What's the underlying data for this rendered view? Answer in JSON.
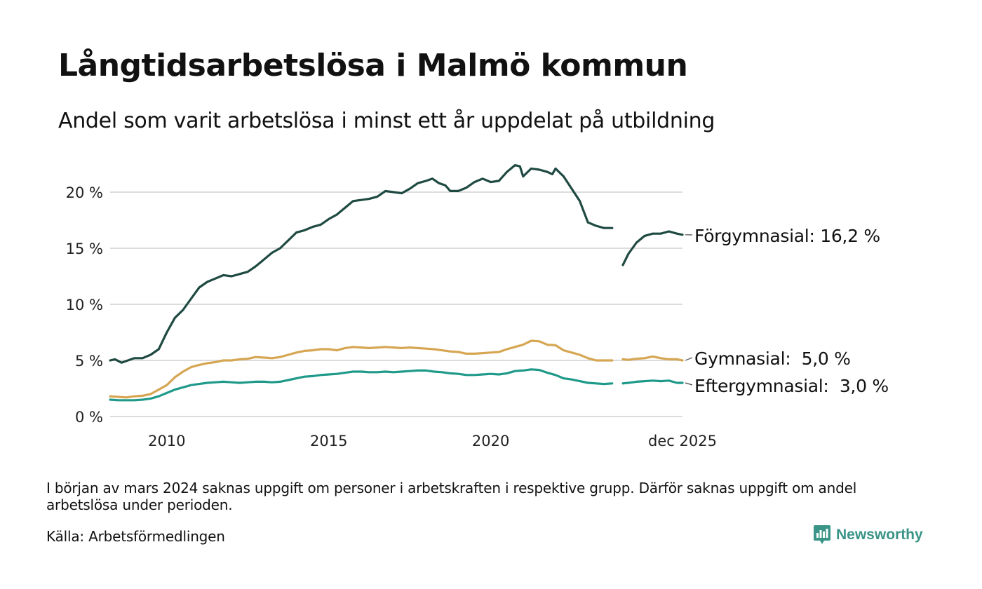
{
  "header": {
    "title": "Långtidsarbetslösa i Malmö kommun",
    "subtitle": "Andel som varit arbetslösa i minst ett år uppdelat på utbildning"
  },
  "footer": {
    "note": "I början av mars 2024 saknas uppgift om personer i arbetskraften i respektive grupp. Därför saknas uppgift om andel arbetslösa under perioden.",
    "source": "Källa: Arbetsförmedlingen",
    "brand": "Newsworthy",
    "brand_icon": "newsworthy-logo-icon",
    "brand_color": "#3a9487"
  },
  "chart_data": {
    "type": "line",
    "title": "Långtidsarbetslösa i Malmö kommun",
    "xlabel": "",
    "ylabel": "",
    "x_range": [
      2008.25,
      2025.92
    ],
    "ylim": [
      0,
      22.5
    ],
    "yticks": [
      0,
      5,
      10,
      15,
      20
    ],
    "ytick_labels": [
      "0 %",
      "5 %",
      "10 %",
      "15 %",
      "20 %"
    ],
    "xticks": [
      2010,
      2015,
      2020,
      2025.92
    ],
    "xtick_labels": [
      "2010",
      "2015",
      "2020",
      "dec 2025"
    ],
    "grid": true,
    "gap": [
      2023.75,
      2024.08
    ],
    "series": [
      {
        "name": "Förgymnasial",
        "label": "Förgymnasial: 16,2 %",
        "color": "#1f4a42",
        "points": [
          [
            2008.25,
            5.0
          ],
          [
            2008.4,
            5.1
          ],
          [
            2008.6,
            4.8
          ],
          [
            2008.8,
            5.0
          ],
          [
            2009.0,
            5.2
          ],
          [
            2009.25,
            5.2
          ],
          [
            2009.5,
            5.5
          ],
          [
            2009.75,
            6.0
          ],
          [
            2010.0,
            7.5
          ],
          [
            2010.25,
            8.8
          ],
          [
            2010.5,
            9.5
          ],
          [
            2010.75,
            10.5
          ],
          [
            2011.0,
            11.5
          ],
          [
            2011.25,
            12.0
          ],
          [
            2011.5,
            12.3
          ],
          [
            2011.75,
            12.6
          ],
          [
            2012.0,
            12.5
          ],
          [
            2012.25,
            12.7
          ],
          [
            2012.5,
            12.9
          ],
          [
            2012.75,
            13.4
          ],
          [
            2013.0,
            14.0
          ],
          [
            2013.25,
            14.6
          ],
          [
            2013.5,
            15.0
          ],
          [
            2013.75,
            15.7
          ],
          [
            2014.0,
            16.4
          ],
          [
            2014.25,
            16.6
          ],
          [
            2014.5,
            16.9
          ],
          [
            2014.75,
            17.1
          ],
          [
            2015.0,
            17.6
          ],
          [
            2015.25,
            18.0
          ],
          [
            2015.5,
            18.6
          ],
          [
            2015.75,
            19.2
          ],
          [
            2016.0,
            19.3
          ],
          [
            2016.25,
            19.4
          ],
          [
            2016.5,
            19.6
          ],
          [
            2016.75,
            20.1
          ],
          [
            2017.0,
            20.0
          ],
          [
            2017.25,
            19.9
          ],
          [
            2017.5,
            20.3
          ],
          [
            2017.75,
            20.8
          ],
          [
            2018.0,
            21.0
          ],
          [
            2018.2,
            21.2
          ],
          [
            2018.4,
            20.8
          ],
          [
            2018.6,
            20.6
          ],
          [
            2018.75,
            20.1
          ],
          [
            2019.0,
            20.1
          ],
          [
            2019.25,
            20.4
          ],
          [
            2019.5,
            20.9
          ],
          [
            2019.75,
            21.2
          ],
          [
            2020.0,
            20.9
          ],
          [
            2020.25,
            21.0
          ],
          [
            2020.5,
            21.8
          ],
          [
            2020.75,
            22.4
          ],
          [
            2020.9,
            22.3
          ],
          [
            2021.0,
            21.4
          ],
          [
            2021.25,
            22.1
          ],
          [
            2021.5,
            22.0
          ],
          [
            2021.75,
            21.8
          ],
          [
            2021.9,
            21.6
          ],
          [
            2022.0,
            22.1
          ],
          [
            2022.25,
            21.4
          ],
          [
            2022.5,
            20.3
          ],
          [
            2022.75,
            19.2
          ],
          [
            2023.0,
            17.3
          ],
          [
            2023.25,
            17.0
          ],
          [
            2023.5,
            16.8
          ],
          [
            2023.75,
            16.8
          ]
        ],
        "points_after_gap": [
          [
            2024.08,
            13.5
          ],
          [
            2024.25,
            14.5
          ],
          [
            2024.5,
            15.5
          ],
          [
            2024.75,
            16.1
          ],
          [
            2025.0,
            16.3
          ],
          [
            2025.25,
            16.3
          ],
          [
            2025.5,
            16.5
          ],
          [
            2025.75,
            16.3
          ],
          [
            2025.92,
            16.2
          ]
        ]
      },
      {
        "name": "Gymnasial",
        "label": "Gymnasial:  5,0 %",
        "color": "#d6a653",
        "points": [
          [
            2008.25,
            1.8
          ],
          [
            2008.5,
            1.75
          ],
          [
            2008.75,
            1.7
          ],
          [
            2009.0,
            1.8
          ],
          [
            2009.25,
            1.85
          ],
          [
            2009.5,
            2.0
          ],
          [
            2009.75,
            2.4
          ],
          [
            2010.0,
            2.8
          ],
          [
            2010.25,
            3.5
          ],
          [
            2010.5,
            4.0
          ],
          [
            2010.75,
            4.4
          ],
          [
            2011.0,
            4.6
          ],
          [
            2011.25,
            4.75
          ],
          [
            2011.5,
            4.85
          ],
          [
            2011.75,
            5.0
          ],
          [
            2012.0,
            5.0
          ],
          [
            2012.25,
            5.1
          ],
          [
            2012.5,
            5.15
          ],
          [
            2012.75,
            5.3
          ],
          [
            2013.0,
            5.25
          ],
          [
            2013.25,
            5.2
          ],
          [
            2013.5,
            5.3
          ],
          [
            2013.75,
            5.5
          ],
          [
            2014.0,
            5.7
          ],
          [
            2014.25,
            5.85
          ],
          [
            2014.5,
            5.9
          ],
          [
            2014.75,
            6.0
          ],
          [
            2015.0,
            6.0
          ],
          [
            2015.25,
            5.9
          ],
          [
            2015.5,
            6.1
          ],
          [
            2015.75,
            6.2
          ],
          [
            2016.0,
            6.15
          ],
          [
            2016.25,
            6.1
          ],
          [
            2016.5,
            6.15
          ],
          [
            2016.75,
            6.2
          ],
          [
            2017.0,
            6.15
          ],
          [
            2017.25,
            6.1
          ],
          [
            2017.5,
            6.15
          ],
          [
            2017.75,
            6.1
          ],
          [
            2018.0,
            6.05
          ],
          [
            2018.25,
            6.0
          ],
          [
            2018.5,
            5.9
          ],
          [
            2018.75,
            5.8
          ],
          [
            2019.0,
            5.75
          ],
          [
            2019.25,
            5.6
          ],
          [
            2019.5,
            5.6
          ],
          [
            2019.75,
            5.65
          ],
          [
            2020.0,
            5.7
          ],
          [
            2020.25,
            5.75
          ],
          [
            2020.5,
            6.0
          ],
          [
            2020.75,
            6.2
          ],
          [
            2021.0,
            6.4
          ],
          [
            2021.25,
            6.75
          ],
          [
            2021.5,
            6.7
          ],
          [
            2021.75,
            6.4
          ],
          [
            2022.0,
            6.35
          ],
          [
            2022.25,
            5.9
          ],
          [
            2022.5,
            5.7
          ],
          [
            2022.75,
            5.5
          ],
          [
            2023.0,
            5.2
          ],
          [
            2023.25,
            5.0
          ],
          [
            2023.5,
            5.0
          ],
          [
            2023.75,
            5.0
          ]
        ],
        "points_after_gap": [
          [
            2024.08,
            5.1
          ],
          [
            2024.25,
            5.05
          ],
          [
            2024.5,
            5.15
          ],
          [
            2024.75,
            5.2
          ],
          [
            2025.0,
            5.35
          ],
          [
            2025.25,
            5.2
          ],
          [
            2025.5,
            5.1
          ],
          [
            2025.75,
            5.1
          ],
          [
            2025.92,
            5.0
          ]
        ]
      },
      {
        "name": "Eftergymnasial",
        "label": "Eftergymnasial:  3,0 %",
        "color": "#1f9a8a",
        "points": [
          [
            2008.25,
            1.5
          ],
          [
            2008.5,
            1.45
          ],
          [
            2008.75,
            1.45
          ],
          [
            2009.0,
            1.45
          ],
          [
            2009.25,
            1.5
          ],
          [
            2009.5,
            1.6
          ],
          [
            2009.75,
            1.8
          ],
          [
            2010.0,
            2.1
          ],
          [
            2010.25,
            2.4
          ],
          [
            2010.5,
            2.6
          ],
          [
            2010.75,
            2.8
          ],
          [
            2011.0,
            2.9
          ],
          [
            2011.25,
            3.0
          ],
          [
            2011.5,
            3.05
          ],
          [
            2011.75,
            3.1
          ],
          [
            2012.0,
            3.05
          ],
          [
            2012.25,
            3.0
          ],
          [
            2012.5,
            3.05
          ],
          [
            2012.75,
            3.1
          ],
          [
            2013.0,
            3.1
          ],
          [
            2013.25,
            3.05
          ],
          [
            2013.5,
            3.1
          ],
          [
            2013.75,
            3.25
          ],
          [
            2014.0,
            3.4
          ],
          [
            2014.25,
            3.55
          ],
          [
            2014.5,
            3.6
          ],
          [
            2014.75,
            3.7
          ],
          [
            2015.0,
            3.75
          ],
          [
            2015.25,
            3.8
          ],
          [
            2015.5,
            3.9
          ],
          [
            2015.75,
            4.0
          ],
          [
            2016.0,
            4.0
          ],
          [
            2016.25,
            3.95
          ],
          [
            2016.5,
            3.95
          ],
          [
            2016.75,
            4.0
          ],
          [
            2017.0,
            3.95
          ],
          [
            2017.25,
            4.0
          ],
          [
            2017.5,
            4.05
          ],
          [
            2017.75,
            4.1
          ],
          [
            2018.0,
            4.1
          ],
          [
            2018.25,
            4.0
          ],
          [
            2018.5,
            3.95
          ],
          [
            2018.75,
            3.85
          ],
          [
            2019.0,
            3.8
          ],
          [
            2019.25,
            3.7
          ],
          [
            2019.5,
            3.7
          ],
          [
            2019.75,
            3.75
          ],
          [
            2020.0,
            3.8
          ],
          [
            2020.25,
            3.75
          ],
          [
            2020.5,
            3.85
          ],
          [
            2020.75,
            4.05
          ],
          [
            2021.0,
            4.1
          ],
          [
            2021.25,
            4.2
          ],
          [
            2021.5,
            4.15
          ],
          [
            2021.75,
            3.9
          ],
          [
            2022.0,
            3.7
          ],
          [
            2022.25,
            3.4
          ],
          [
            2022.5,
            3.3
          ],
          [
            2022.75,
            3.15
          ],
          [
            2023.0,
            3.0
          ],
          [
            2023.25,
            2.95
          ],
          [
            2023.5,
            2.9
          ],
          [
            2023.75,
            2.95
          ]
        ],
        "points_after_gap": [
          [
            2024.08,
            2.95
          ],
          [
            2024.25,
            3.0
          ],
          [
            2024.5,
            3.1
          ],
          [
            2024.75,
            3.15
          ],
          [
            2025.0,
            3.2
          ],
          [
            2025.25,
            3.15
          ],
          [
            2025.5,
            3.2
          ],
          [
            2025.75,
            3.0
          ],
          [
            2025.92,
            3.0
          ]
        ]
      }
    ]
  }
}
